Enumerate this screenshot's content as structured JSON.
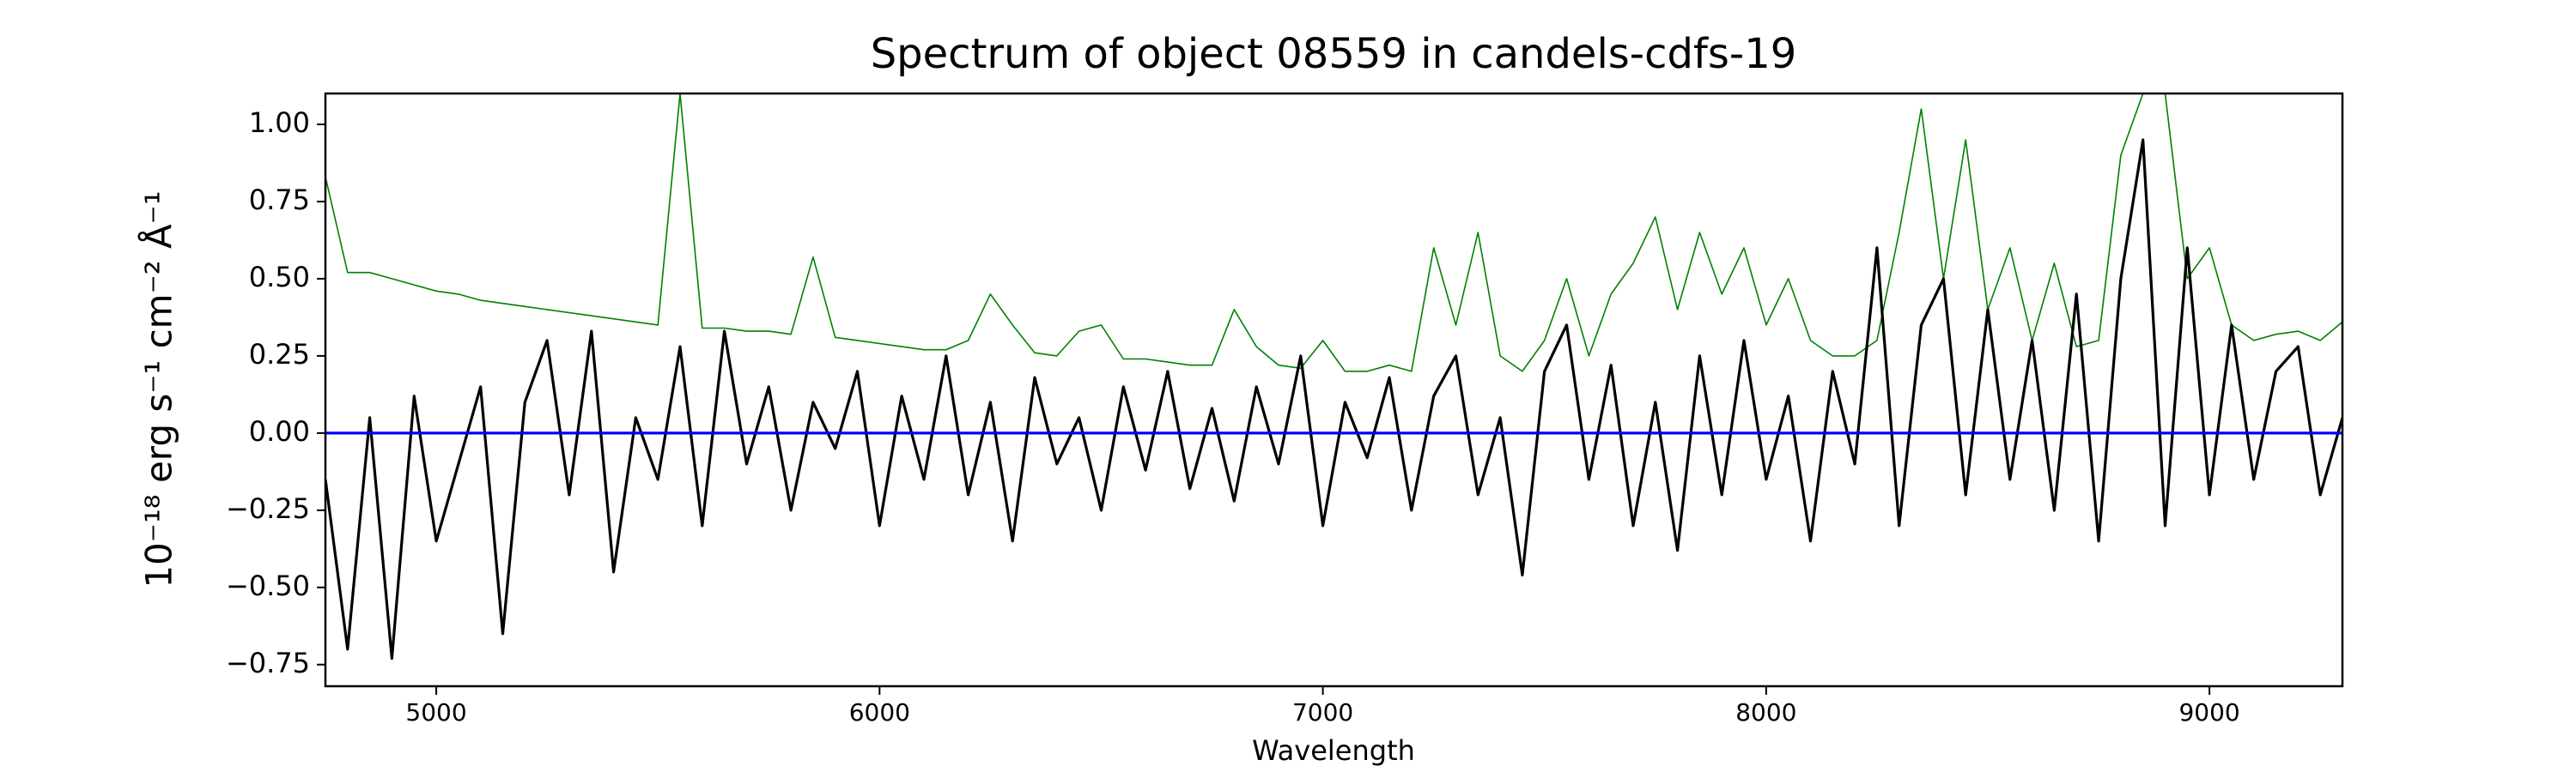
{
  "chart_data": {
    "type": "line",
    "title": "Spectrum of object 08559 in candels-cdfs-19",
    "xlabel": "Wavelength",
    "ylabel": "10⁻¹⁸ erg s⁻¹ cm⁻² Å⁻¹",
    "x": [
      4750,
      4800,
      4850,
      4900,
      4950,
      5000,
      5050,
      5100,
      5150,
      5200,
      5250,
      5300,
      5350,
      5400,
      5450,
      5500,
      5550,
      5600,
      5650,
      5700,
      5750,
      5800,
      5850,
      5900,
      5950,
      6000,
      6050,
      6100,
      6150,
      6200,
      6250,
      6300,
      6350,
      6400,
      6450,
      6500,
      6550,
      6600,
      6650,
      6700,
      6750,
      6800,
      6850,
      6900,
      6950,
      7000,
      7050,
      7100,
      7150,
      7200,
      7250,
      7300,
      7350,
      7400,
      7450,
      7500,
      7550,
      7600,
      7650,
      7700,
      7750,
      7800,
      7850,
      7900,
      7950,
      8000,
      8050,
      8100,
      8150,
      8200,
      8250,
      8300,
      8350,
      8400,
      8450,
      8500,
      8550,
      8600,
      8650,
      8700,
      8750,
      8800,
      8850,
      8900,
      8950,
      9000,
      9050,
      9100,
      9150,
      9200,
      9250,
      9300
    ],
    "series": [
      {
        "color": "#008000",
        "values": [
          0.83,
          0.52,
          0.52,
          0.5,
          0.48,
          0.46,
          0.45,
          0.43,
          0.42,
          0.41,
          0.4,
          0.39,
          0.38,
          0.37,
          0.36,
          0.35,
          1.1,
          0.34,
          0.34,
          0.33,
          0.33,
          0.32,
          0.57,
          0.31,
          0.3,
          0.29,
          0.28,
          0.27,
          0.27,
          0.3,
          0.45,
          0.35,
          0.26,
          0.25,
          0.33,
          0.35,
          0.24,
          0.24,
          0.23,
          0.22,
          0.22,
          0.4,
          0.28,
          0.22,
          0.21,
          0.3,
          0.2,
          0.2,
          0.22,
          0.2,
          0.6,
          0.35,
          0.65,
          0.25,
          0.2,
          0.3,
          0.5,
          0.25,
          0.45,
          0.55,
          0.7,
          0.4,
          0.65,
          0.45,
          0.6,
          0.35,
          0.5,
          0.3,
          0.25,
          0.25,
          0.3,
          0.65,
          1.05,
          0.5,
          0.95,
          0.4,
          0.6,
          0.3,
          0.55,
          0.28,
          0.3,
          0.9,
          1.1,
          1.1,
          0.5,
          0.6,
          0.35,
          0.3,
          0.32,
          0.33,
          0.3,
          0.36
        ]
      },
      {
        "color": "#000000",
        "values": [
          -0.15,
          -0.7,
          0.05,
          -0.73,
          0.12,
          -0.35,
          -0.1,
          0.15,
          -0.65,
          0.1,
          0.3,
          -0.2,
          0.33,
          -0.45,
          0.05,
          -0.15,
          0.28,
          -0.3,
          0.33,
          -0.1,
          0.15,
          -0.25,
          0.1,
          -0.05,
          0.2,
          -0.3,
          0.12,
          -0.15,
          0.25,
          -0.2,
          0.1,
          -0.35,
          0.18,
          -0.1,
          0.05,
          -0.25,
          0.15,
          -0.12,
          0.2,
          -0.18,
          0.08,
          -0.22,
          0.15,
          -0.1,
          0.25,
          -0.3,
          0.1,
          -0.08,
          0.18,
          -0.25,
          0.12,
          0.25,
          -0.2,
          0.05,
          -0.46,
          0.2,
          0.35,
          -0.15,
          0.22,
          -0.3,
          0.1,
          -0.38,
          0.25,
          -0.2,
          0.3,
          -0.15,
          0.12,
          -0.35,
          0.2,
          -0.1,
          0.6,
          -0.3,
          0.35,
          0.5,
          -0.2,
          0.4,
          -0.15,
          0.3,
          -0.25,
          0.45,
          -0.35,
          0.5,
          0.95,
          -0.3,
          0.6,
          -0.2,
          0.35,
          -0.15,
          0.2,
          0.28,
          -0.2,
          0.05
        ]
      },
      {
        "color": "#0000ff",
        "x": [
          4750,
          9300
        ],
        "values": [
          0,
          0
        ]
      }
    ],
    "xlim": [
      4750,
      9300
    ],
    "ylim": [
      -0.82,
      1.1
    ],
    "xticks": [
      5000,
      6000,
      7000,
      8000,
      9000
    ],
    "yticks": [
      {
        "value": -0.75,
        "label": "−0.75"
      },
      {
        "value": -0.5,
        "label": "−0.50"
      },
      {
        "value": -0.25,
        "label": "−0.25"
      },
      {
        "value": 0,
        "label": "0.00"
      },
      {
        "value": 0.25,
        "label": "0.25"
      },
      {
        "value": 0.5,
        "label": "0.50"
      },
      {
        "value": 0.75,
        "label": "0.75"
      },
      {
        "value": 1,
        "label": "1.00"
      }
    ]
  }
}
